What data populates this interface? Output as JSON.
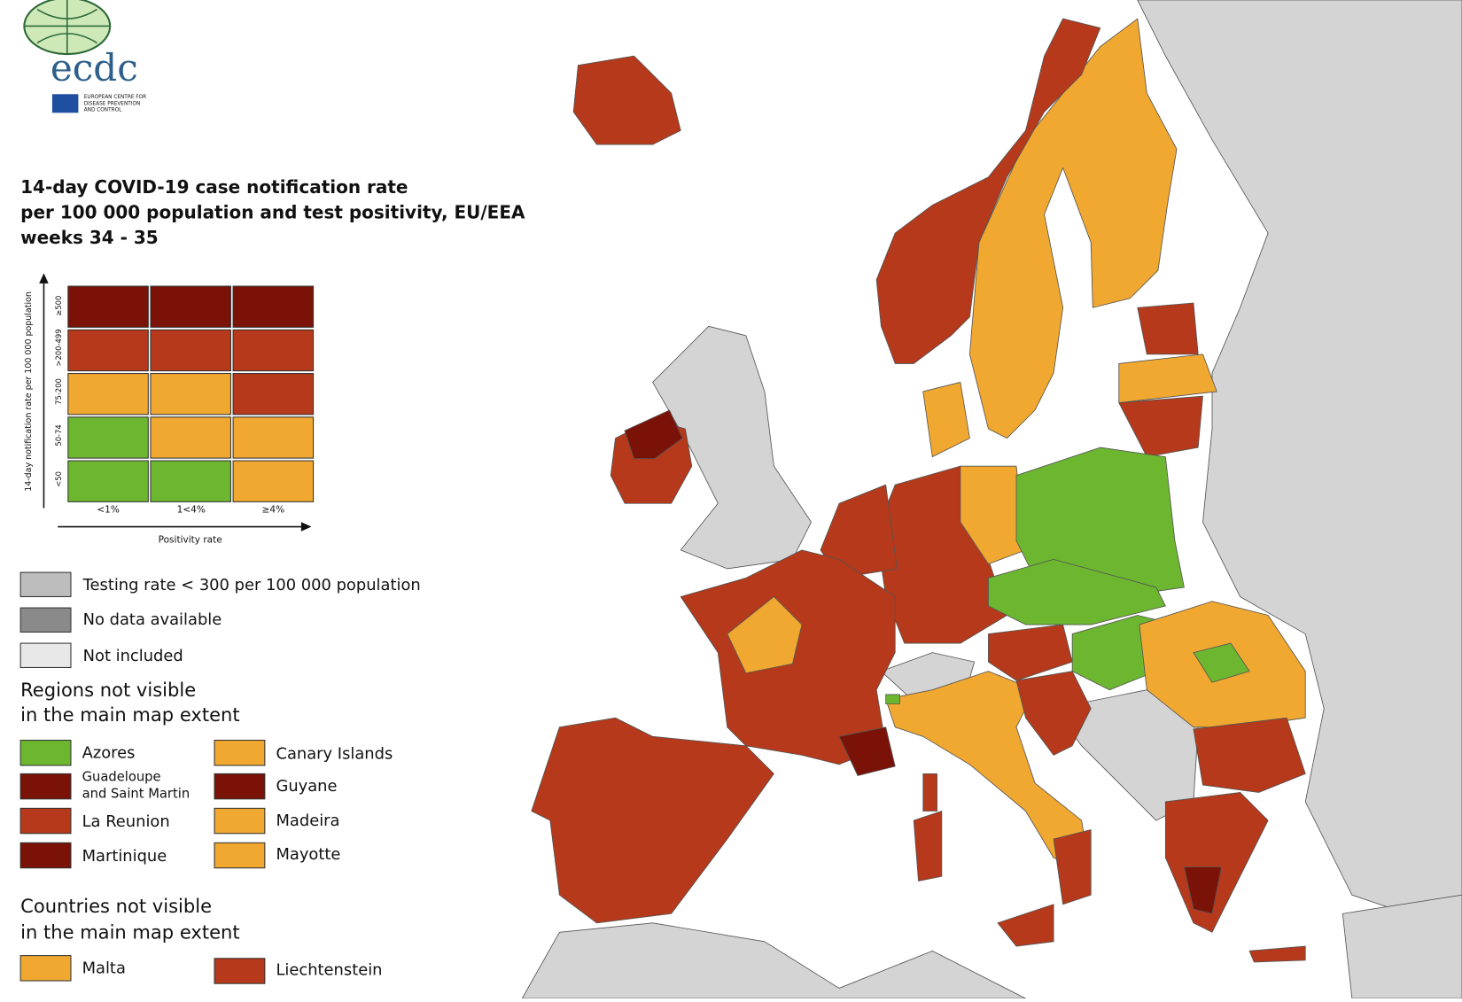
{
  "logo": {
    "acronym": "ecdc",
    "name_lines": [
      "EUROPEAN CENTRE FOR",
      "DISEASE PREVENTION",
      "AND CONTROL"
    ]
  },
  "title_lines": [
    "14-day COVID-19 case notification rate",
    "per 100 000 population and test positivity, EU/EEA",
    "weeks 34 - 35"
  ],
  "matrix": {
    "y_axis_label": "14-day notification rate per 100 000 population",
    "row_labels": [
      "≥500",
      ">200-499",
      "75-200",
      "50-74",
      "<50"
    ],
    "column_labels": [
      "<1%",
      "1<4%",
      "≥4%"
    ],
    "x_axis_label": "Positivity rate"
  },
  "legend": {
    "items": [
      "Testing rate < 300 per 100 000 population",
      "No data available",
      "Not included"
    ]
  },
  "regions": {
    "heading_lines": [
      "Regions not visible",
      "in the main map extent"
    ],
    "items": [
      "Azores",
      "Canary Islands",
      [
        "Guadeloupe",
        "and Saint Martin"
      ],
      "Guyane",
      "La Reunion",
      "Madeira",
      "Martinique",
      "Mayotte"
    ]
  },
  "countries": {
    "heading_lines": [
      "Countries not visible",
      "in the main map extent"
    ],
    "items": [
      "Malta",
      "Liechtenstein"
    ]
  }
}
